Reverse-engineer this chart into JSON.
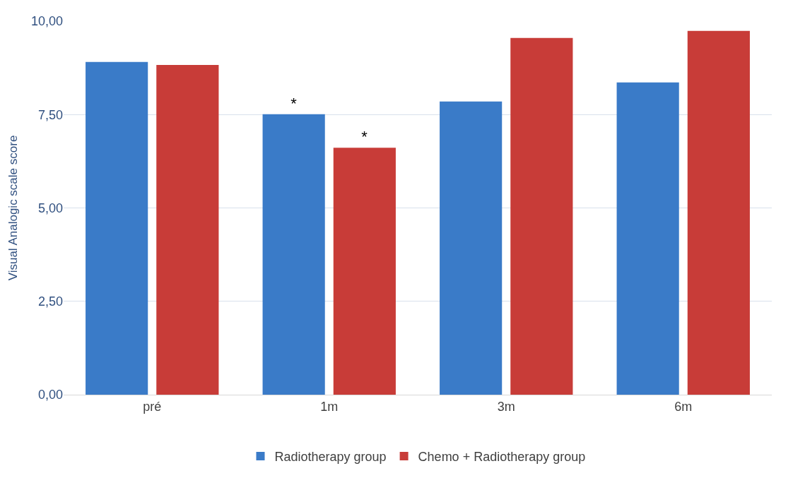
{
  "chart_data": {
    "type": "bar",
    "ylabel": "Visual Analogic scale score",
    "categories": [
      "pré",
      "1m",
      "3m",
      "6m"
    ],
    "series": [
      {
        "name": "Radiotherapy group",
        "color": "#3a7bc8",
        "values": [
          8.91,
          7.51,
          7.85,
          8.36
        ],
        "value_labels": [
          null,
          "*",
          null,
          null
        ]
      },
      {
        "name": "Chemo + Radiotherapy group",
        "color": "#c83c38",
        "values": [
          8.83,
          6.61,
          9.55,
          9.74
        ],
        "value_labels": [
          null,
          "*",
          null,
          null
        ]
      }
    ],
    "ylim": [
      0,
      10
    ],
    "yticks": [
      {
        "value": 0,
        "label": "0,00"
      },
      {
        "value": 2.5,
        "label": "2,50"
      },
      {
        "value": 5,
        "label": "5,00"
      },
      {
        "value": 7.5,
        "label": "7,50"
      },
      {
        "value": 10,
        "label": "10,00"
      }
    ],
    "grid": "y",
    "legend": "bottom"
  }
}
